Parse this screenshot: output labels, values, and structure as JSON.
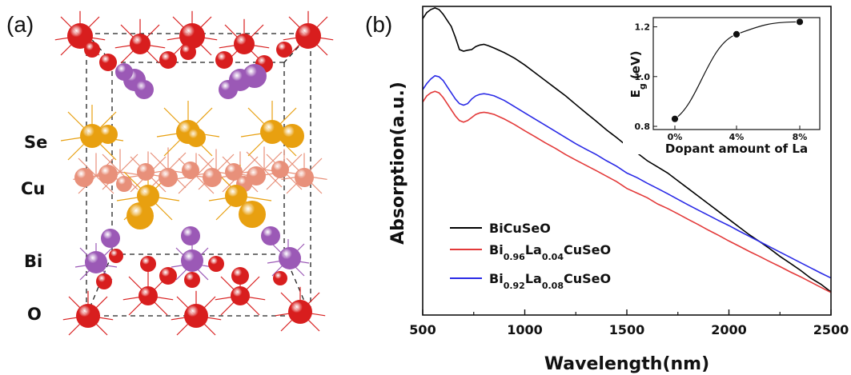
{
  "panel_a": {
    "label": "(a)",
    "elements": [
      "Se",
      "Cu",
      "Bi",
      "O"
    ],
    "atom_colors": {
      "O": "#d81e1e",
      "Bi": "#9b59b6",
      "Se": "#e8a010",
      "Cu": "#e8907a"
    }
  },
  "panel_b": {
    "label": "(b)"
  },
  "chart_data": [
    {
      "type": "line",
      "title": "",
      "xlabel": "Wavelength(nm)",
      "ylabel": "Absorption(a.u.)",
      "xlim": [
        500,
        2500
      ],
      "ylim": [
        0,
        1
      ],
      "x_ticks": [
        "500",
        "1000",
        "1500",
        "2000",
        "2500"
      ],
      "legend_placement": "bottom-left",
      "series": [
        {
          "name": "BiCuSeO",
          "name_parts": [
            {
              "t": "BiCuSeO",
              "sub": false
            }
          ],
          "color": "#000000",
          "points": [
            [
              500,
              0.96
            ],
            [
              520,
              0.98
            ],
            [
              540,
              0.99
            ],
            [
              560,
              0.995
            ],
            [
              580,
              0.99
            ],
            [
              600,
              0.975
            ],
            [
              620,
              0.955
            ],
            [
              640,
              0.935
            ],
            [
              660,
              0.9
            ],
            [
              680,
              0.86
            ],
            [
              700,
              0.855
            ],
            [
              720,
              0.858
            ],
            [
              740,
              0.86
            ],
            [
              760,
              0.87
            ],
            [
              780,
              0.875
            ],
            [
              800,
              0.877
            ],
            [
              820,
              0.873
            ],
            [
              850,
              0.865
            ],
            [
              900,
              0.85
            ],
            [
              950,
              0.832
            ],
            [
              1000,
              0.81
            ],
            [
              1050,
              0.785
            ],
            [
              1100,
              0.76
            ],
            [
              1150,
              0.735
            ],
            [
              1200,
              0.71
            ],
            [
              1250,
              0.682
            ],
            [
              1300,
              0.655
            ],
            [
              1350,
              0.628
            ],
            [
              1400,
              0.6
            ],
            [
              1450,
              0.575
            ],
            [
              1500,
              0.548
            ],
            [
              1550,
              0.525
            ],
            [
              1600,
              0.5
            ],
            [
              1650,
              0.48
            ],
            [
              1700,
              0.46
            ],
            [
              1750,
              0.435
            ],
            [
              1800,
              0.41
            ],
            [
              1850,
              0.385
            ],
            [
              1900,
              0.36
            ],
            [
              1950,
              0.335
            ],
            [
              2000,
              0.31
            ],
            [
              2050,
              0.285
            ],
            [
              2100,
              0.26
            ],
            [
              2150,
              0.238
            ],
            [
              2200,
              0.215
            ],
            [
              2250,
              0.19
            ],
            [
              2300,
              0.168
            ],
            [
              2350,
              0.145
            ],
            [
              2400,
              0.12
            ],
            [
              2450,
              0.1
            ],
            [
              2500,
              0.075
            ]
          ]
        },
        {
          "name": "Bi0.96La0.04CuSeO",
          "name_parts": [
            {
              "t": "Bi",
              "sub": false
            },
            {
              "t": "0.96",
              "sub": true
            },
            {
              "t": "La",
              "sub": false
            },
            {
              "t": "0.04",
              "sub": true
            },
            {
              "t": "CuSeO",
              "sub": false
            }
          ],
          "color": "#e33a3a",
          "points": [
            [
              500,
              0.69
            ],
            [
              520,
              0.71
            ],
            [
              540,
              0.72
            ],
            [
              560,
              0.725
            ],
            [
              580,
              0.72
            ],
            [
              600,
              0.705
            ],
            [
              620,
              0.685
            ],
            [
              640,
              0.665
            ],
            [
              660,
              0.645
            ],
            [
              680,
              0.63
            ],
            [
              700,
              0.625
            ],
            [
              720,
              0.63
            ],
            [
              740,
              0.64
            ],
            [
              760,
              0.65
            ],
            [
              780,
              0.655
            ],
            [
              800,
              0.657
            ],
            [
              820,
              0.655
            ],
            [
              850,
              0.65
            ],
            [
              900,
              0.635
            ],
            [
              950,
              0.617
            ],
            [
              1000,
              0.597
            ],
            [
              1050,
              0.578
            ],
            [
              1100,
              0.558
            ],
            [
              1150,
              0.54
            ],
            [
              1200,
              0.52
            ],
            [
              1250,
              0.502
            ],
            [
              1300,
              0.485
            ],
            [
              1350,
              0.468
            ],
            [
              1400,
              0.45
            ],
            [
              1450,
              0.432
            ],
            [
              1500,
              0.41
            ],
            [
              1550,
              0.395
            ],
            [
              1600,
              0.38
            ],
            [
              1650,
              0.36
            ],
            [
              1700,
              0.345
            ],
            [
              1750,
              0.328
            ],
            [
              1800,
              0.31
            ],
            [
              1850,
              0.293
            ],
            [
              1900,
              0.275
            ],
            [
              1950,
              0.258
            ],
            [
              2000,
              0.24
            ],
            [
              2050,
              0.223
            ],
            [
              2100,
              0.206
            ],
            [
              2150,
              0.19
            ],
            [
              2200,
              0.173
            ],
            [
              2250,
              0.157
            ],
            [
              2300,
              0.14
            ],
            [
              2350,
              0.124
            ],
            [
              2400,
              0.107
            ],
            [
              2450,
              0.09
            ],
            [
              2500,
              0.073
            ]
          ]
        },
        {
          "name": "Bi0.92La0.08CuSeO",
          "name_parts": [
            {
              "t": "Bi",
              "sub": false
            },
            {
              "t": "0.92",
              "sub": true
            },
            {
              "t": "La",
              "sub": false
            },
            {
              "t": "0.08",
              "sub": true
            },
            {
              "t": "CuSeO",
              "sub": false
            }
          ],
          "color": "#2a2ae6",
          "points": [
            [
              500,
              0.73
            ],
            [
              520,
              0.75
            ],
            [
              540,
              0.765
            ],
            [
              560,
              0.775
            ],
            [
              580,
              0.772
            ],
            [
              600,
              0.76
            ],
            [
              620,
              0.74
            ],
            [
              640,
              0.72
            ],
            [
              660,
              0.7
            ],
            [
              680,
              0.685
            ],
            [
              700,
              0.68
            ],
            [
              720,
              0.685
            ],
            [
              740,
              0.7
            ],
            [
              760,
              0.71
            ],
            [
              780,
              0.715
            ],
            [
              800,
              0.717
            ],
            [
              820,
              0.715
            ],
            [
              850,
              0.71
            ],
            [
              900,
              0.695
            ],
            [
              950,
              0.675
            ],
            [
              1000,
              0.655
            ],
            [
              1050,
              0.635
            ],
            [
              1100,
              0.615
            ],
            [
              1150,
              0.595
            ],
            [
              1200,
              0.575
            ],
            [
              1250,
              0.555
            ],
            [
              1300,
              0.537
            ],
            [
              1350,
              0.52
            ],
            [
              1400,
              0.5
            ],
            [
              1450,
              0.482
            ],
            [
              1500,
              0.46
            ],
            [
              1550,
              0.445
            ],
            [
              1600,
              0.427
            ],
            [
              1650,
              0.41
            ],
            [
              1700,
              0.393
            ],
            [
              1750,
              0.375
            ],
            [
              1800,
              0.357
            ],
            [
              1850,
              0.34
            ],
            [
              1900,
              0.323
            ],
            [
              1950,
              0.306
            ],
            [
              2000,
              0.29
            ],
            [
              2050,
              0.272
            ],
            [
              2100,
              0.255
            ],
            [
              2150,
              0.238
            ],
            [
              2200,
              0.221
            ],
            [
              2250,
              0.204
            ],
            [
              2300,
              0.187
            ],
            [
              2350,
              0.17
            ],
            [
              2400,
              0.153
            ],
            [
              2450,
              0.136
            ],
            [
              2500,
              0.12
            ]
          ]
        }
      ]
    },
    {
      "type": "scatter",
      "title": "",
      "xlabel": "Dopant amount of La",
      "ylabel_parts": [
        {
          "t": "E",
          "sub": false
        },
        {
          "t": "g",
          "sub": true
        },
        {
          "t": " (eV)",
          "sub": false
        }
      ],
      "categories": [
        "0%",
        "4%",
        "8%"
      ],
      "values": [
        0.83,
        1.17,
        1.22
      ],
      "ylim": [
        0.8,
        1.25
      ],
      "y_ticks": [
        "0.8",
        "1.0",
        "1.2"
      ],
      "fit_curve": true
    }
  ]
}
